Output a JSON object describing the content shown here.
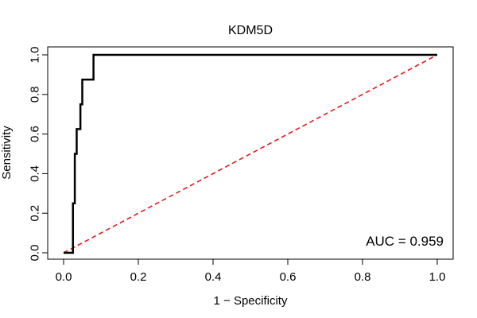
{
  "chart_data": {
    "type": "line",
    "title": "KDM5D",
    "xlabel": "1 − Specificity",
    "ylabel": "Sensitivity",
    "xlim": [
      0,
      1
    ],
    "ylim": [
      0,
      1
    ],
    "x_ticks": [
      "0.0",
      "0.2",
      "0.4",
      "0.6",
      "0.8",
      "1.0"
    ],
    "y_ticks": [
      "0.0",
      "0.2",
      "0.4",
      "0.6",
      "0.8",
      "1.0"
    ],
    "grid": false,
    "series": [
      {
        "name": "ROC curve",
        "color": "#000000",
        "x": [
          0.0,
          0.02,
          0.025,
          0.025,
          0.03,
          0.03,
          0.035,
          0.035,
          0.045,
          0.045,
          0.05,
          0.05,
          0.08,
          0.08,
          1.0
        ],
        "y": [
          0.0,
          0.0,
          0.0,
          0.25,
          0.25,
          0.5,
          0.5,
          0.625,
          0.625,
          0.75,
          0.75,
          0.875,
          0.875,
          1.0,
          1.0
        ]
      },
      {
        "name": "Chance line",
        "color": "#e41a1c",
        "x": [
          0.0,
          1.0
        ],
        "y": [
          0.0,
          1.0
        ]
      }
    ],
    "annotation": "AUC = 0.959"
  }
}
